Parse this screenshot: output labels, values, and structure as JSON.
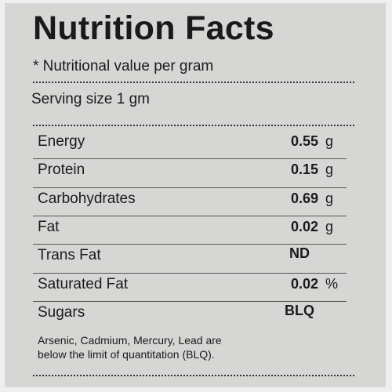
{
  "header": {
    "title": "Nutrition Facts",
    "note": "* Nutritional value per gram",
    "serving": "Serving size 1 gm"
  },
  "table": {
    "rows": [
      [
        "Energy",
        "0.55",
        "g"
      ],
      [
        "Protein",
        "0.15",
        "g"
      ],
      [
        "Carbohydrates",
        "0.69",
        "g"
      ],
      [
        "Fat",
        "0.02",
        "g"
      ],
      [
        "Trans Fat",
        "ND"
      ],
      [
        "Saturated Fat",
        "0.02",
        "%"
      ],
      [
        "Sugars",
        "BLQ"
      ]
    ]
  },
  "footnote": [
    "Arsenic, Cadmium, Mercury, Lead are",
    "below the limit of quantitation (BLQ)."
  ]
}
